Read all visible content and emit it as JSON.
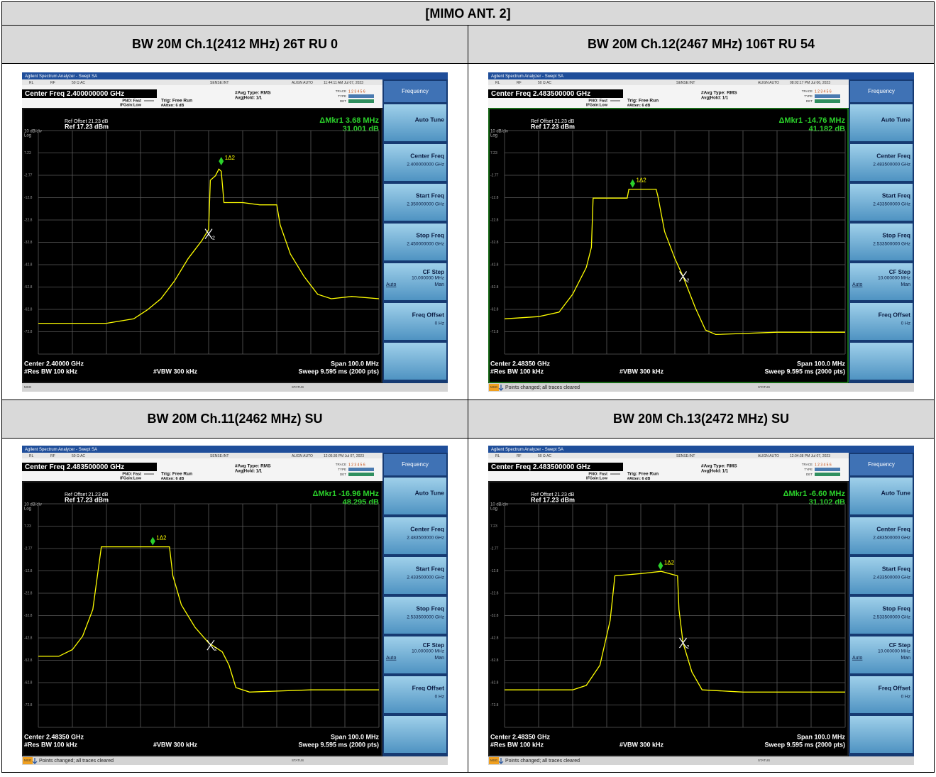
{
  "header": {
    "title": "[MIMO ANT. 2]"
  },
  "panels": [
    {
      "caption": "BW 20M Ch.1(2412 MHz) 26T RU 0",
      "title_bar": "Agilent Spectrum Analyzer - Swept SA",
      "status_row": [
        "RL",
        "RF",
        "50 Ω  AC",
        "SENSE:INT",
        "ALIGN AUTO"
      ],
      "timestamp": "11:44:11 AM Jul 07, 2023",
      "center_freq": "Center Freq 2.400000000 GHz",
      "pno": "PNO: Fast",
      "ifgain": "IFGain:Low",
      "trig": "Trig: Free Run",
      "atten": "#Atten: 6 dB",
      "avg_type": "#Avg Type: RMS",
      "avg_hold": "Avg|Hold: 1/1",
      "trace_info": [
        "TRACE",
        "1 2 3 4 5 6",
        "TYPE",
        "DET"
      ],
      "ref_offset": "Ref Offset 21.23 dB",
      "ref_level": "Ref 17.23 dBm",
      "scale_text": "10 dB/div",
      "scale_type": "Log",
      "marker_readout": "ΔMkr1 3.68 MHz",
      "marker_value": "31.001 dB",
      "y_labels": [
        "7.23",
        "-2.77",
        "-12.8",
        "-22.8",
        "-32.8",
        "-42.8",
        "-52.8",
        "-62.8",
        "-72.8"
      ],
      "footer_center": "Center 2.40000 GHz",
      "footer_span": "Span 100.0 MHz",
      "res_bw": "#Res BW 100 kHz",
      "vbw": "#VBW 300 kHz",
      "sweep": "Sweep  9.595 ms (2000 pts)",
      "msg": "MSG",
      "status": "STATUS",
      "softkeys": {
        "menu": "Frequency",
        "keys": [
          {
            "label": "Auto Tune"
          },
          {
            "label": "Center Freq",
            "value": "2.400000000 GHz"
          },
          {
            "label": "Start Freq",
            "value": "2.350000000 GHz"
          },
          {
            "label": "Stop Freq",
            "value": "2.450000000 GHz"
          },
          {
            "label": "CF Step",
            "value": "10.000000 MHz",
            "options": [
              "Auto",
              "Man"
            ]
          },
          {
            "label": "Freq Offset",
            "value": "0 Hz"
          }
        ]
      },
      "scale": {
        "top_dbm": 17.23,
        "db_per_div": 10,
        "divisions": 10,
        "span_mhz": [
          -50,
          50
        ]
      },
      "trace": {
        "mhz": [
          -50,
          -40,
          -30,
          -22,
          -18,
          -14,
          -10,
          -6,
          -2,
          0,
          0.5,
          2,
          3,
          3.7,
          4.5,
          10,
          15,
          20,
          21,
          24,
          28,
          32,
          36,
          42,
          50
        ],
        "dbm": [
          -69,
          -69,
          -69,
          -67,
          -63,
          -58,
          -50,
          -40,
          -32,
          -27,
          -5,
          -3,
          0,
          -1,
          -15,
          -15,
          -16,
          -16,
          -25,
          -38,
          -48,
          -56,
          -58,
          -57,
          -58
        ]
      },
      "markers": [
        {
          "label": "1Δ2",
          "mhz": 3.7,
          "dbm": 1
        },
        {
          "label": "2",
          "mhz": 0,
          "dbm": -29
        }
      ]
    },
    {
      "caption": "BW 20M Ch.12(2467 MHz) 106T RU 54",
      "title_bar": "Agilent Spectrum Analyzer - Swept SA",
      "status_row": [
        "RL",
        "RF",
        "50 Ω  AC",
        "SENSE:INT",
        "ALIGN AUTO"
      ],
      "timestamp": "08:02:17 PM Jul 06, 2023",
      "center_freq": "Center Freq 2.483500000 GHz",
      "pno": "PNO: Fast",
      "ifgain": "IFGain:Low",
      "trig": "Trig: Free Run",
      "atten": "#Atten: 6 dB",
      "avg_type": "#Avg Type: RMS",
      "avg_hold": "Avg|Hold: 1/1",
      "trace_info": [
        "TRACE",
        "1 2 3 4 5 6",
        "TYPE",
        "DET"
      ],
      "ref_offset": "Ref Offset 21.23 dB",
      "ref_level": "Ref 17.23 dBm",
      "scale_text": "10 dB/div",
      "scale_type": "Log",
      "marker_readout": "ΔMkr1 -14.76 MHz",
      "marker_value": "41.182 dB",
      "y_labels": [
        "7.23",
        "-2.77",
        "-12.8",
        "-22.8",
        "-32.8",
        "-42.8",
        "-52.8",
        "-62.8",
        "-72.8"
      ],
      "footer_center": "Center 2.48350 GHz",
      "footer_span": "Span 100.0 MHz",
      "res_bw": "#Res BW 100 kHz",
      "vbw": "#VBW 300 kHz",
      "sweep": "Sweep  9.595 ms (2000 pts)",
      "msg": "MSG",
      "message": "Points changed; all traces cleared",
      "status": "STATUS",
      "softkeys": {
        "menu": "Frequency",
        "keys": [
          {
            "label": "Auto Tune"
          },
          {
            "label": "Center Freq",
            "value": "2.483500000 GHz"
          },
          {
            "label": "Start Freq",
            "value": "2.433500000 GHz"
          },
          {
            "label": "Stop Freq",
            "value": "2.533500000 GHz"
          },
          {
            "label": "CF Step",
            "value": "10.000000 MHz",
            "options": [
              "Auto",
              "Man"
            ]
          },
          {
            "label": "Freq Offset",
            "value": "0 Hz"
          }
        ]
      },
      "scale": {
        "top_dbm": 17.23,
        "db_per_div": 10,
        "divisions": 10,
        "span_mhz": [
          -50,
          50
        ]
      },
      "trace": {
        "mhz": [
          -50,
          -40,
          -34,
          -30,
          -26,
          -24.5,
          -24,
          -14,
          -13.5,
          -5.5,
          -5,
          -3,
          0,
          2.4,
          6,
          9,
          12,
          30,
          50
        ],
        "dbm": [
          -67,
          -66,
          -64,
          -56,
          -44,
          -35,
          -13,
          -13,
          -9,
          -9,
          -12,
          -28,
          -40,
          -48,
          -62,
          -72,
          -74,
          -73,
          -73
        ]
      },
      "markers": [
        {
          "label": "1Δ2",
          "mhz": -12.4,
          "dbm": -9
        },
        {
          "label": "2",
          "mhz": 2.4,
          "dbm": -48
        }
      ]
    },
    {
      "caption": "BW 20M Ch.11(2462 MHz) SU",
      "title_bar": "Agilent Spectrum Analyzer - Swept SA",
      "status_row": [
        "RL",
        "RF",
        "50 Ω  AC",
        "SENSE:INT",
        "ALIGN AUTO"
      ],
      "timestamp": "12:05:36 PM Jul 07, 2023",
      "center_freq": "Center Freq 2.483500000 GHz",
      "pno": "PNO: Fast",
      "ifgain": "IFGain:Low",
      "trig": "Trig: Free Run",
      "atten": "#Atten: 6 dB",
      "avg_type": "#Avg Type: RMS",
      "avg_hold": "Avg|Hold: 1/1",
      "trace_info": [
        "TRACE",
        "1 2 3 4 5 6",
        "TYPE",
        "DET"
      ],
      "ref_offset": "Ref Offset 21.23 dB",
      "ref_level": "Ref 17.23 dBm",
      "scale_text": "10 dB/div",
      "scale_type": "Log",
      "marker_readout": "ΔMkr1 -16.96 MHz",
      "marker_value": "48.295 dB",
      "y_labels": [
        "7.23",
        "-2.77",
        "-12.8",
        "-22.8",
        "-32.8",
        "-42.8",
        "-52.8",
        "-62.8",
        "-72.8"
      ],
      "footer_center": "Center 2.48350 GHz",
      "footer_span": "Span 100.0 MHz",
      "res_bw": "#Res BW 100 kHz",
      "vbw": "#VBW 300 kHz",
      "sweep": "Sweep  9.595 ms (2000 pts)",
      "msg": "MSG",
      "message": "Points changed; all traces cleared",
      "status": "STATUS",
      "softkeys": {
        "menu": "Frequency",
        "keys": [
          {
            "label": "Auto Tune"
          },
          {
            "label": "Center Freq",
            "value": "2.483500000 GHz"
          },
          {
            "label": "Start Freq",
            "value": "2.433500000 GHz"
          },
          {
            "label": "Stop Freq",
            "value": "2.533500000 GHz"
          },
          {
            "label": "CF Step",
            "value": "10.000000 MHz",
            "options": [
              "Auto",
              "Man"
            ]
          },
          {
            "label": "Freq Offset",
            "value": "0 Hz"
          }
        ]
      },
      "scale": {
        "top_dbm": 17.23,
        "db_per_div": 10,
        "divisions": 10,
        "span_mhz": [
          -50,
          50
        ]
      },
      "trace": {
        "mhz": [
          -50,
          -44,
          -40,
          -37,
          -34,
          -31.5,
          -20,
          -11.5,
          -10.5,
          -8,
          -4,
          0,
          4,
          6,
          8,
          12,
          30,
          50
        ],
        "dbm": [
          -51,
          -51,
          -48,
          -42,
          -30,
          -2,
          -2,
          -2,
          -15,
          -28,
          -38,
          -45,
          -49,
          -55,
          -65,
          -67,
          -66,
          -66
        ]
      },
      "markers": [
        {
          "label": "1Δ2",
          "mhz": -16.4,
          "dbm": -2
        },
        {
          "label": "2",
          "mhz": 0.6,
          "dbm": -46
        }
      ]
    },
    {
      "caption": "BW 20M Ch.13(2472 MHz) SU",
      "title_bar": "Agilent Spectrum Analyzer - Swept SA",
      "status_row": [
        "RL",
        "RF",
        "50 Ω  AC",
        "SENSE:INT",
        "ALIGN AUTO"
      ],
      "timestamp": "12:04:38 PM Jul 07, 2023",
      "center_freq": "Center Freq 2.483500000 GHz",
      "pno": "PNO: Fast",
      "ifgain": "IFGain:Low",
      "trig": "Trig: Free Run",
      "atten": "#Atten: 6 dB",
      "avg_type": "#Avg Type: RMS",
      "avg_hold": "Avg|Hold: 1/1",
      "trace_info": [
        "TRACE",
        "1 2 3 4 5 6",
        "TYPE",
        "DET"
      ],
      "ref_offset": "Ref Offset 21.23 dB",
      "ref_level": "Ref 17.23 dBm",
      "scale_text": "10 dB/div",
      "scale_type": "Log",
      "marker_readout": "ΔMkr1 -6.60 MHz",
      "marker_value": "31.102 dB",
      "y_labels": [
        "7.23",
        "-2.77",
        "-12.8",
        "-22.8",
        "-32.8",
        "-42.8",
        "-52.8",
        "-62.8",
        "-72.8"
      ],
      "footer_center": "Center 2.48350 GHz",
      "footer_span": "Span 100.0 MHz",
      "res_bw": "#Res BW 100 kHz",
      "vbw": "#VBW 300 kHz",
      "sweep": "Sweep  9.595 ms (2000 pts)",
      "msg": "MSG",
      "message": "Points changed; all traces cleared",
      "status": "STATUS",
      "softkeys": {
        "menu": "Frequency",
        "keys": [
          {
            "label": "Auto Tune"
          },
          {
            "label": "Center Freq",
            "value": "2.483500000 GHz"
          },
          {
            "label": "Start Freq",
            "value": "2.433500000 GHz"
          },
          {
            "label": "Stop Freq",
            "value": "2.533500000 GHz"
          },
          {
            "label": "CF Step",
            "value": "10.000000 MHz",
            "options": [
              "Auto",
              "Man"
            ]
          },
          {
            "label": "Freq Offset",
            "value": "0 Hz"
          }
        ]
      },
      "scale": {
        "top_dbm": 17.23,
        "db_per_div": 10,
        "divisions": 10,
        "span_mhz": [
          -50,
          50
        ]
      },
      "trace": {
        "mhz": [
          -50,
          -30,
          -26,
          -22,
          -19,
          -17.6,
          -10,
          -4,
          0.8,
          1.2,
          2.4,
          5,
          8,
          20,
          50
        ],
        "dbm": [
          -66,
          -66,
          -64,
          -55,
          -35,
          -15,
          -14,
          -13,
          -15,
          -30,
          -45,
          -58,
          -66,
          -67,
          -67
        ]
      },
      "markers": [
        {
          "label": "1Δ2",
          "mhz": -4.2,
          "dbm": -13
        },
        {
          "label": "2",
          "mhz": 2.4,
          "dbm": -45
        }
      ]
    }
  ]
}
